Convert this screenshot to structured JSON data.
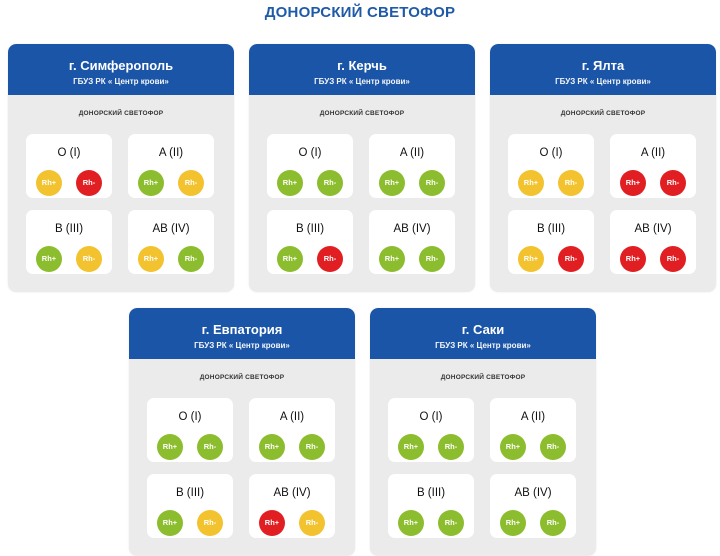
{
  "title": "ДОНОРСКИЙ СВЕТОФОР",
  "colors": {
    "green": "#8cbd2e",
    "yellow": "#f3c22f",
    "red": "#e11f23",
    "header": "#1b55a8"
  },
  "cards": [
    {
      "city": "г. Симферополь",
      "org": "ГБУЗ РК « Центр крови»",
      "subtitle": "ДОНОРСКИЙ СВЕТОФОР",
      "groups": [
        {
          "label": "O (I)",
          "pos": {
            "text": "Rh+",
            "status": "yellow"
          },
          "neg": {
            "text": "Rh-",
            "status": "red"
          }
        },
        {
          "label": "A (II)",
          "pos": {
            "text": "Rh+",
            "status": "green"
          },
          "neg": {
            "text": "Rh-",
            "status": "yellow"
          }
        },
        {
          "label": "B (III)",
          "pos": {
            "text": "Rh+",
            "status": "green"
          },
          "neg": {
            "text": "Rh-",
            "status": "yellow"
          }
        },
        {
          "label": "AB (IV)",
          "pos": {
            "text": "Rh+",
            "status": "yellow"
          },
          "neg": {
            "text": "Rh-",
            "status": "green"
          }
        }
      ]
    },
    {
      "city": "г. Керчь",
      "org": "ГБУЗ РК « Центр крови»",
      "subtitle": "ДОНОРСКИЙ СВЕТОФОР",
      "groups": [
        {
          "label": "O (I)",
          "pos": {
            "text": "Rh+",
            "status": "green"
          },
          "neg": {
            "text": "Rh-",
            "status": "green"
          }
        },
        {
          "label": "A (II)",
          "pos": {
            "text": "Rh+",
            "status": "green"
          },
          "neg": {
            "text": "Rh-",
            "status": "green"
          }
        },
        {
          "label": "B (III)",
          "pos": {
            "text": "Rh+",
            "status": "green"
          },
          "neg": {
            "text": "Rh-",
            "status": "red"
          }
        },
        {
          "label": "AB (IV)",
          "pos": {
            "text": "Rh+",
            "status": "green"
          },
          "neg": {
            "text": "Rh-",
            "status": "green"
          }
        }
      ]
    },
    {
      "city": "г. Ялта",
      "org": "ГБУЗ РК « Центр крови»",
      "subtitle": "ДОНОРСКИЙ СВЕТОФОР",
      "groups": [
        {
          "label": "O (I)",
          "pos": {
            "text": "Rh+",
            "status": "yellow"
          },
          "neg": {
            "text": "Rh-",
            "status": "yellow"
          }
        },
        {
          "label": "A (II)",
          "pos": {
            "text": "Rh+",
            "status": "red"
          },
          "neg": {
            "text": "Rh-",
            "status": "red"
          }
        },
        {
          "label": "B (III)",
          "pos": {
            "text": "Rh+",
            "status": "yellow"
          },
          "neg": {
            "text": "Rh-",
            "status": "red"
          }
        },
        {
          "label": "AB (IV)",
          "pos": {
            "text": "Rh+",
            "status": "red"
          },
          "neg": {
            "text": "Rh-",
            "status": "red"
          }
        }
      ]
    },
    {
      "city": "г. Евпатория",
      "org": "ГБУЗ РК « Центр крови»",
      "subtitle": "ДОНОРСКИЙ СВЕТОФОР",
      "groups": [
        {
          "label": "O (I)",
          "pos": {
            "text": "Rh+",
            "status": "green"
          },
          "neg": {
            "text": "Rh-",
            "status": "green"
          }
        },
        {
          "label": "A (II)",
          "pos": {
            "text": "Rh+",
            "status": "green"
          },
          "neg": {
            "text": "Rh-",
            "status": "green"
          }
        },
        {
          "label": "B (III)",
          "pos": {
            "text": "Rh+",
            "status": "green"
          },
          "neg": {
            "text": "Rh-",
            "status": "yellow"
          }
        },
        {
          "label": "AB (IV)",
          "pos": {
            "text": "Rh+",
            "status": "red"
          },
          "neg": {
            "text": "Rh-",
            "status": "yellow"
          }
        }
      ]
    },
    {
      "city": "г. Саки",
      "org": "ГБУЗ РК « Центр крови»",
      "subtitle": "ДОНОРСКИЙ СВЕТОФОР",
      "groups": [
        {
          "label": "O (I)",
          "pos": {
            "text": "Rh+",
            "status": "green"
          },
          "neg": {
            "text": "Rh-",
            "status": "green"
          }
        },
        {
          "label": "A (II)",
          "pos": {
            "text": "Rh+",
            "status": "green"
          },
          "neg": {
            "text": "Rh-",
            "status": "green"
          }
        },
        {
          "label": "B (III)",
          "pos": {
            "text": "Rh+",
            "status": "green"
          },
          "neg": {
            "text": "Rh-",
            "status": "green"
          }
        },
        {
          "label": "AB (IV)",
          "pos": {
            "text": "Rh+",
            "status": "green"
          },
          "neg": {
            "text": "Rh-",
            "status": "green"
          }
        }
      ]
    }
  ]
}
